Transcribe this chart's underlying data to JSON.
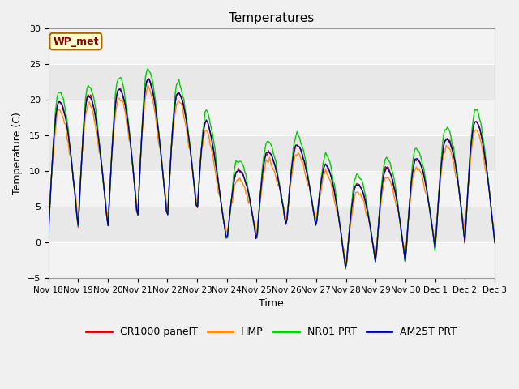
{
  "title": "Temperatures",
  "ylabel": "Temperature (C)",
  "xlabel": "Time",
  "station_label": "WP_met",
  "ylim": [
    -5,
    30
  ],
  "figsize": [
    6.4,
    4.8
  ],
  "dpi": 100,
  "plot_bg_color": "#e8e8e8",
  "fig_bg_color": "#f0f0f0",
  "series_colors": {
    "CR1000 panelT": "#cc0000",
    "HMP": "#ff8800",
    "NR01 PRT": "#00cc00",
    "AM25T PRT": "#000099"
  },
  "grid_color": "#ffffff",
  "tick_labels": [
    "Nov 18",
    "Nov 19",
    "Nov 20",
    "Nov 21",
    "Nov 22",
    "Nov 23",
    "Nov 24",
    "Nov 25",
    "Nov 26",
    "Nov 27",
    "Nov 28",
    "Nov 29",
    "Nov 30",
    "Dec 1",
    "Dec 2",
    "Dec 3"
  ],
  "yticks": [
    -5,
    0,
    5,
    10,
    15,
    20,
    25,
    30
  ],
  "n_days": 15,
  "n_points": 360
}
